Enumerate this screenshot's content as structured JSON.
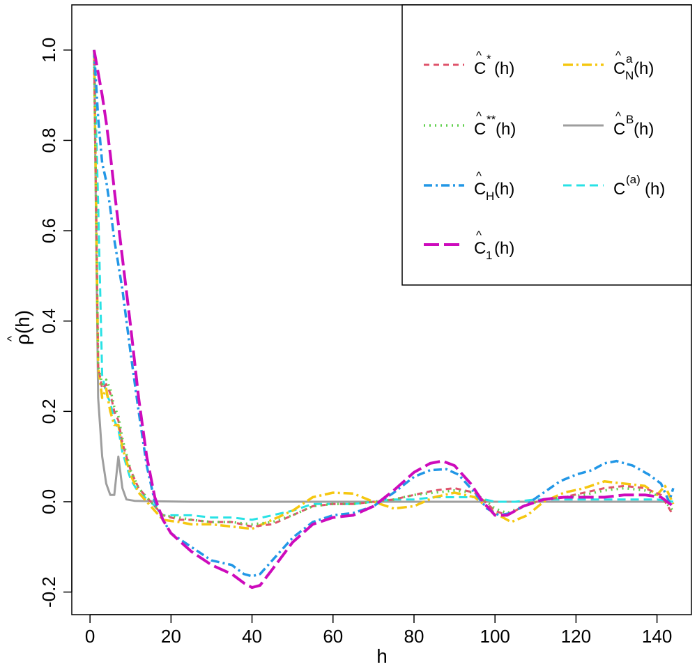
{
  "chart_data": {
    "type": "line",
    "xlabel": "h",
    "ylabel": "ρ(h)",
    "ylabel_hat": "^",
    "xlim": [
      -4.5,
      148.5
    ],
    "ylim": [
      -0.25,
      1.1
    ],
    "xticks": [
      0,
      20,
      40,
      60,
      80,
      100,
      120,
      140
    ],
    "yticks": [
      -0.2,
      0.0,
      0.2,
      0.4,
      0.6,
      0.8,
      1.0
    ],
    "ytick_labels": [
      "-0.2",
      "0.0",
      "0.2",
      "0.4",
      "0.6",
      "0.8",
      "1.0"
    ],
    "legend_position": "top-right",
    "series": [
      {
        "key": "c_star",
        "legend": {
          "hat": "^",
          "base": "C",
          "sup": "*",
          "sub": "",
          "arg": "(h)"
        },
        "color": "#DF536B",
        "dash": "8,6",
        "width": 3,
        "points": [
          [
            1,
            1.0
          ],
          [
            2,
            0.3
          ],
          [
            3,
            0.25
          ],
          [
            4,
            0.26
          ],
          [
            5,
            0.24
          ],
          [
            6,
            0.2
          ],
          [
            7,
            0.18
          ],
          [
            8,
            0.13
          ],
          [
            10,
            0.07
          ],
          [
            12,
            0.03
          ],
          [
            15,
            0.0
          ],
          [
            18,
            -0.03
          ],
          [
            22,
            -0.04
          ],
          [
            25,
            -0.04
          ],
          [
            30,
            -0.045
          ],
          [
            35,
            -0.045
          ],
          [
            40,
            -0.055
          ],
          [
            45,
            -0.05
          ],
          [
            50,
            -0.03
          ],
          [
            55,
            -0.01
          ],
          [
            60,
            -0.005
          ],
          [
            65,
            -0.005
          ],
          [
            70,
            0.0
          ],
          [
            75,
            0.005
          ],
          [
            80,
            0.015
          ],
          [
            85,
            0.025
          ],
          [
            90,
            0.03
          ],
          [
            95,
            0.02
          ],
          [
            100,
            -0.02
          ],
          [
            103,
            -0.03
          ],
          [
            107,
            -0.01
          ],
          [
            112,
            0.005
          ],
          [
            117,
            0.01
          ],
          [
            122,
            0.02
          ],
          [
            127,
            0.03
          ],
          [
            132,
            0.035
          ],
          [
            137,
            0.03
          ],
          [
            141,
            0.015
          ],
          [
            144,
            -0.03
          ]
        ]
      },
      {
        "key": "c_2star",
        "legend": {
          "hat": "^",
          "base": "C",
          "sup": "**",
          "sub": "",
          "arg": "(h)"
        },
        "color": "#61D04F",
        "dash": "2,6",
        "width": 3.5,
        "points": [
          [
            1,
            1.0
          ],
          [
            2,
            0.3
          ],
          [
            3,
            0.26
          ],
          [
            4,
            0.27
          ],
          [
            5,
            0.25
          ],
          [
            6,
            0.21
          ],
          [
            7,
            0.19
          ],
          [
            8,
            0.14
          ],
          [
            10,
            0.07
          ],
          [
            12,
            0.03
          ],
          [
            15,
            0.0
          ],
          [
            18,
            -0.03
          ],
          [
            22,
            -0.035
          ],
          [
            25,
            -0.04
          ],
          [
            30,
            -0.045
          ],
          [
            35,
            -0.045
          ],
          [
            40,
            -0.05
          ],
          [
            45,
            -0.045
          ],
          [
            50,
            -0.03
          ],
          [
            55,
            -0.01
          ],
          [
            60,
            -0.005
          ],
          [
            65,
            -0.005
          ],
          [
            70,
            0.0
          ],
          [
            75,
            0.005
          ],
          [
            80,
            0.015
          ],
          [
            85,
            0.02
          ],
          [
            90,
            0.025
          ],
          [
            95,
            0.02
          ],
          [
            100,
            -0.015
          ],
          [
            103,
            -0.025
          ],
          [
            107,
            -0.01
          ],
          [
            112,
            0.005
          ],
          [
            117,
            0.01
          ],
          [
            122,
            0.015
          ],
          [
            127,
            0.025
          ],
          [
            132,
            0.03
          ],
          [
            137,
            0.025
          ],
          [
            141,
            0.01
          ],
          [
            144,
            -0.02
          ]
        ]
      },
      {
        "key": "c_h",
        "legend": {
          "hat": "^",
          "base": "C",
          "sup": "",
          "sub": "H",
          "arg": "(h)"
        },
        "color": "#2297E6",
        "dash": "12,5,3,5",
        "width": 3.5,
        "points": [
          [
            1,
            1.0
          ],
          [
            2,
            0.85
          ],
          [
            3,
            0.75
          ],
          [
            4,
            0.71
          ],
          [
            5,
            0.65
          ],
          [
            6,
            0.58
          ],
          [
            8,
            0.47
          ],
          [
            10,
            0.33
          ],
          [
            12,
            0.2
          ],
          [
            14,
            0.08
          ],
          [
            16,
            0.0
          ],
          [
            18,
            -0.04
          ],
          [
            20,
            -0.07
          ],
          [
            25,
            -0.1
          ],
          [
            30,
            -0.13
          ],
          [
            35,
            -0.14
          ],
          [
            38,
            -0.16
          ],
          [
            40,
            -0.165
          ],
          [
            42,
            -0.16
          ],
          [
            45,
            -0.13
          ],
          [
            50,
            -0.08
          ],
          [
            55,
            -0.045
          ],
          [
            60,
            -0.03
          ],
          [
            65,
            -0.025
          ],
          [
            70,
            -0.01
          ],
          [
            75,
            0.02
          ],
          [
            80,
            0.055
          ],
          [
            84,
            0.07
          ],
          [
            88,
            0.072
          ],
          [
            91,
            0.06
          ],
          [
            95,
            0.02
          ],
          [
            98,
            -0.015
          ],
          [
            101,
            -0.03
          ],
          [
            104,
            -0.025
          ],
          [
            108,
            -0.005
          ],
          [
            112,
            0.02
          ],
          [
            116,
            0.045
          ],
          [
            120,
            0.06
          ],
          [
            124,
            0.07
          ],
          [
            127,
            0.085
          ],
          [
            130,
            0.09
          ],
          [
            134,
            0.08
          ],
          [
            138,
            0.06
          ],
          [
            141,
            0.04
          ],
          [
            143,
            0.0
          ],
          [
            144,
            0.03
          ]
        ]
      },
      {
        "key": "c_1",
        "legend": {
          "hat": "^",
          "base": "C",
          "sup": "",
          "sub": "1",
          "arg": "(h)"
        },
        "color": "#CD0BBC",
        "dash": "22,7",
        "width": 4,
        "points": [
          [
            1,
            1.0
          ],
          [
            2,
            0.95
          ],
          [
            3,
            0.9
          ],
          [
            4,
            0.84
          ],
          [
            5,
            0.77
          ],
          [
            6,
            0.69
          ],
          [
            8,
            0.54
          ],
          [
            10,
            0.39
          ],
          [
            12,
            0.23
          ],
          [
            14,
            0.1
          ],
          [
            16,
            0.01
          ],
          [
            18,
            -0.04
          ],
          [
            20,
            -0.07
          ],
          [
            25,
            -0.11
          ],
          [
            30,
            -0.14
          ],
          [
            35,
            -0.16
          ],
          [
            38,
            -0.18
          ],
          [
            40,
            -0.19
          ],
          [
            42,
            -0.185
          ],
          [
            45,
            -0.15
          ],
          [
            50,
            -0.09
          ],
          [
            55,
            -0.05
          ],
          [
            60,
            -0.035
          ],
          [
            65,
            -0.03
          ],
          [
            70,
            -0.01
          ],
          [
            75,
            0.025
          ],
          [
            80,
            0.065
          ],
          [
            84,
            0.085
          ],
          [
            87,
            0.09
          ],
          [
            90,
            0.08
          ],
          [
            94,
            0.04
          ],
          [
            97,
            0.0
          ],
          [
            100,
            -0.03
          ],
          [
            103,
            -0.03
          ],
          [
            107,
            -0.01
          ],
          [
            112,
            0.005
          ],
          [
            117,
            0.01
          ],
          [
            122,
            0.01
          ],
          [
            127,
            0.01
          ],
          [
            132,
            0.015
          ],
          [
            137,
            0.015
          ],
          [
            141,
            0.01
          ],
          [
            144,
            -0.01
          ]
        ]
      },
      {
        "key": "c_n_a",
        "legend": {
          "hat": "^",
          "base": "C",
          "sup": "a",
          "sub": "N",
          "arg": "(h)"
        },
        "color": "#F5C710",
        "dash": "14,5,3,5",
        "width": 3.5,
        "points": [
          [
            1,
            1.0
          ],
          [
            2,
            0.3
          ],
          [
            3,
            0.23
          ],
          [
            4,
            0.25
          ],
          [
            5,
            0.2
          ],
          [
            6,
            0.17
          ],
          [
            7,
            0.17
          ],
          [
            8,
            0.12
          ],
          [
            10,
            0.06
          ],
          [
            12,
            0.02
          ],
          [
            15,
            -0.01
          ],
          [
            18,
            -0.04
          ],
          [
            22,
            -0.045
          ],
          [
            25,
            -0.05
          ],
          [
            30,
            -0.05
          ],
          [
            35,
            -0.055
          ],
          [
            40,
            -0.06
          ],
          [
            45,
            -0.04
          ],
          [
            50,
            -0.02
          ],
          [
            55,
            0.01
          ],
          [
            60,
            0.02
          ],
          [
            65,
            0.018
          ],
          [
            70,
            0.0
          ],
          [
            75,
            -0.015
          ],
          [
            80,
            -0.01
          ],
          [
            85,
            0.01
          ],
          [
            90,
            0.02
          ],
          [
            95,
            0.01
          ],
          [
            100,
            -0.025
          ],
          [
            104,
            -0.045
          ],
          [
            108,
            -0.03
          ],
          [
            112,
            0.0
          ],
          [
            117,
            0.02
          ],
          [
            122,
            0.03
          ],
          [
            127,
            0.045
          ],
          [
            132,
            0.04
          ],
          [
            137,
            0.035
          ],
          [
            140,
            0.015
          ],
          [
            142,
            0.035
          ],
          [
            144,
            -0.005
          ]
        ]
      },
      {
        "key": "c_b",
        "legend": {
          "hat": "^",
          "base": "C",
          "sup": "B",
          "sub": "",
          "arg": "(h)"
        },
        "color": "#9E9E9E",
        "dash": "none",
        "width": 3,
        "points": [
          [
            1,
            1.0
          ],
          [
            1.5,
            0.6
          ],
          [
            2,
            0.23
          ],
          [
            3,
            0.1
          ],
          [
            4,
            0.04
          ],
          [
            5,
            0.015
          ],
          [
            6,
            0.015
          ],
          [
            7,
            0.1
          ],
          [
            8,
            0.03
          ],
          [
            9,
            0.005
          ],
          [
            11,
            0.002
          ],
          [
            15,
            0.001
          ],
          [
            25,
            0.0
          ],
          [
            144,
            0.0
          ]
        ]
      },
      {
        "key": "c_a",
        "legend": {
          "hat": "",
          "base": "C",
          "sup": "(a)",
          "sub": "",
          "arg": "(h)"
        },
        "color": "#28E2E5",
        "dash": "12,7",
        "width": 3,
        "points": [
          [
            1,
            1.0
          ],
          [
            2,
            0.66
          ],
          [
            3,
            0.28
          ],
          [
            4,
            0.24
          ],
          [
            5,
            0.22
          ],
          [
            6,
            0.18
          ],
          [
            7,
            0.16
          ],
          [
            8,
            0.11
          ],
          [
            10,
            0.05
          ],
          [
            12,
            0.02
          ],
          [
            15,
            0.0
          ],
          [
            18,
            -0.03
          ],
          [
            22,
            -0.03
          ],
          [
            25,
            -0.03
          ],
          [
            30,
            -0.035
          ],
          [
            35,
            -0.035
          ],
          [
            40,
            -0.04
          ],
          [
            45,
            -0.03
          ],
          [
            50,
            -0.02
          ],
          [
            55,
            -0.005
          ],
          [
            60,
            -0.005
          ],
          [
            65,
            -0.005
          ],
          [
            70,
            0.0
          ],
          [
            75,
            0.005
          ],
          [
            80,
            0.005
          ],
          [
            85,
            0.01
          ],
          [
            90,
            0.01
          ],
          [
            95,
            0.01
          ],
          [
            100,
            0.0
          ],
          [
            105,
            0.0
          ],
          [
            110,
            0.005
          ],
          [
            115,
            0.005
          ],
          [
            120,
            0.005
          ],
          [
            125,
            0.005
          ],
          [
            130,
            0.005
          ],
          [
            135,
            0.005
          ],
          [
            140,
            0.005
          ],
          [
            144,
            0.0
          ]
        ]
      }
    ],
    "legend_order": [
      "c_star",
      "c_n_a",
      "c_2star",
      "c_b",
      "c_h",
      "c_a",
      "c_1"
    ]
  }
}
